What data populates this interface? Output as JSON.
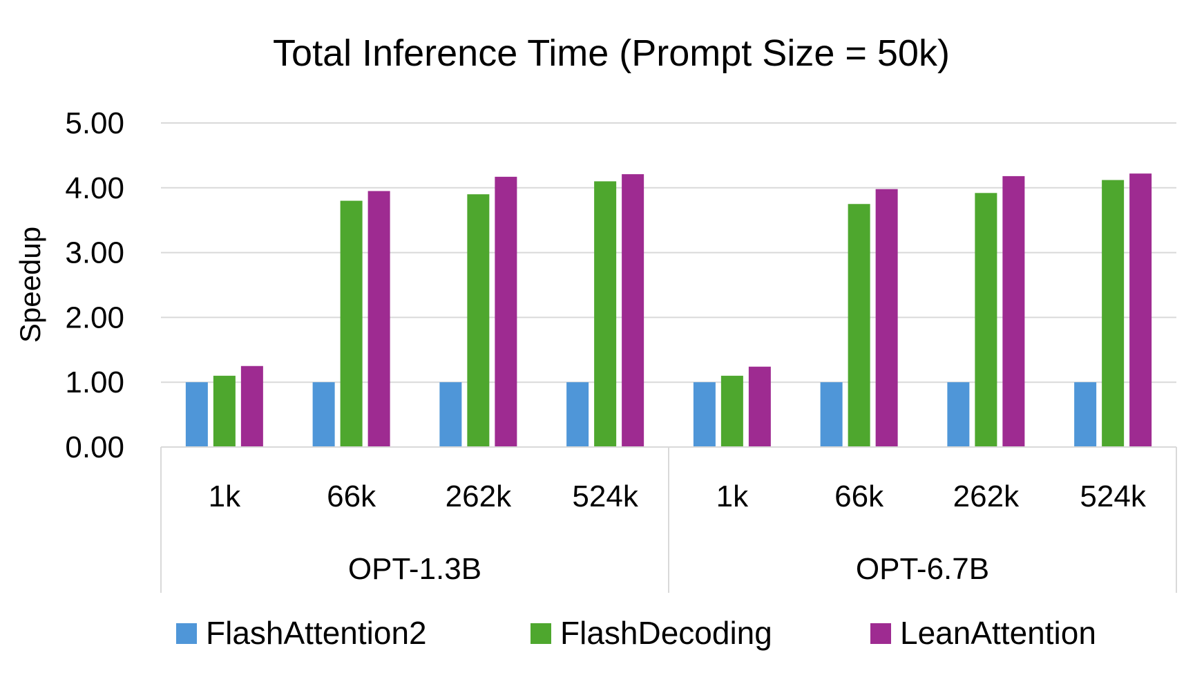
{
  "chart_data": {
    "type": "bar",
    "title": "Total Inference Time (Prompt Size = 50k)",
    "ylabel": "Speedup",
    "xlabel": "",
    "ylim": [
      0,
      5
    ],
    "yticks": [
      "0.00",
      "1.00",
      "2.00",
      "3.00",
      "4.00",
      "5.00"
    ],
    "grid": true,
    "legend_position": "bottom",
    "groups": [
      {
        "label": "OPT-1.3B",
        "categories": [
          "1k",
          "66k",
          "262k",
          "524k"
        ]
      },
      {
        "label": "OPT-6.7B",
        "categories": [
          "1k",
          "66k",
          "262k",
          "524k"
        ]
      }
    ],
    "series": [
      {
        "name": "FlashAttention2",
        "color": "#4f96d8",
        "values": [
          1.0,
          1.0,
          1.0,
          1.0,
          1.0,
          1.0,
          1.0,
          1.0
        ]
      },
      {
        "name": "FlashDecoding",
        "color": "#4ea72e",
        "values": [
          1.1,
          3.8,
          3.9,
          4.1,
          1.1,
          3.75,
          3.92,
          4.12
        ]
      },
      {
        "name": "LeanAttention",
        "color": "#9e2b91",
        "values": [
          1.25,
          3.95,
          4.17,
          4.21,
          1.24,
          3.98,
          4.18,
          4.22
        ]
      }
    ]
  }
}
